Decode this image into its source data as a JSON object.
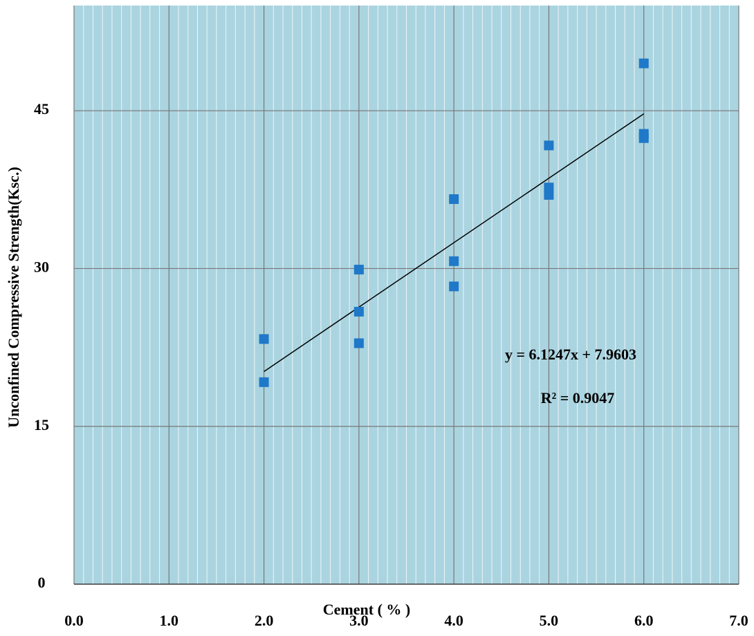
{
  "chart_data": {
    "type": "scatter",
    "x_label": "Cement ( % )",
    "y_label": "Unconfined Compressive Strength(Ksc.)",
    "series": [
      {
        "color": "#1f78c8",
        "x": [
          2,
          2,
          3,
          3,
          3,
          4,
          4,
          4,
          5,
          5,
          5,
          6,
          6,
          6
        ],
        "values": [
          23.3,
          19.2,
          29.9,
          25.9,
          22.9,
          36.6,
          30.7,
          28.3,
          41.7,
          37.7,
          37.0,
          49.5,
          42.8,
          42.4
        ]
      }
    ],
    "trendline": {
      "slope": 6.1247,
      "intercept": 7.9603,
      "x": [
        2,
        6
      ],
      "color": "#000000"
    },
    "annotations": [
      "y = 6.1247x + 7.9603",
      "R² = 0.9047"
    ],
    "xlim": [
      0,
      7
    ],
    "ylim": [
      0,
      55
    ],
    "xticks": [
      {
        "value": 0,
        "label": "0.0"
      },
      {
        "value": 1,
        "label": "1.0"
      },
      {
        "value": 2,
        "label": "2.0"
      },
      {
        "value": 3,
        "label": "3.0"
      },
      {
        "value": 4,
        "label": "4.0"
      },
      {
        "value": 5,
        "label": "5.0"
      },
      {
        "value": 6,
        "label": "6.0"
      },
      {
        "value": 7,
        "label": "7.0"
      }
    ],
    "yticks": [
      0,
      15,
      30,
      45
    ],
    "grid": true,
    "background": "#aad4e0"
  }
}
